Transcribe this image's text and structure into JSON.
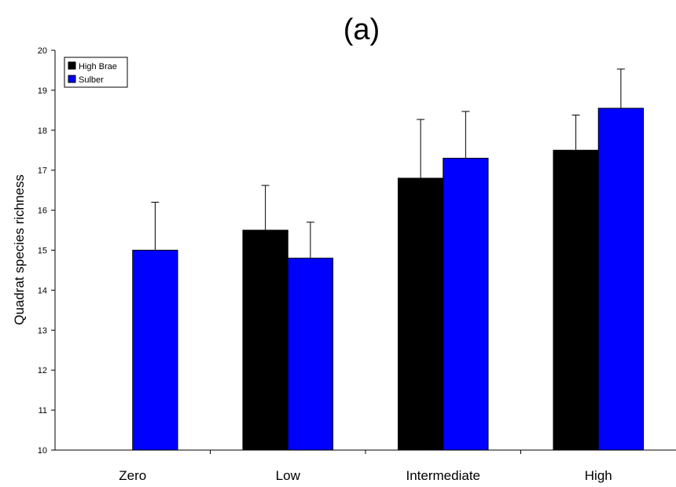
{
  "chart_data": {
    "type": "bar",
    "title": "(a)",
    "xlabel": "",
    "ylabel": "Quadrat species richness",
    "ylim": [
      10,
      20
    ],
    "yticks": [
      10,
      11,
      12,
      13,
      14,
      15,
      16,
      17,
      18,
      19,
      20
    ],
    "categories": [
      "Zero",
      "Low",
      "Intermediate",
      "High"
    ],
    "error_bars": "upper",
    "legend_position": "top-left",
    "series": [
      {
        "name": "High Brae",
        "color": "#000000",
        "values": [
          null,
          15.5,
          16.8,
          17.5
        ],
        "errors": [
          null,
          1.12,
          1.47,
          0.88
        ]
      },
      {
        "name": "Sulber",
        "color": "#0000ff",
        "values": [
          15.0,
          14.8,
          17.3,
          18.55
        ],
        "errors": [
          1.2,
          0.9,
          1.17,
          0.98
        ]
      }
    ]
  }
}
